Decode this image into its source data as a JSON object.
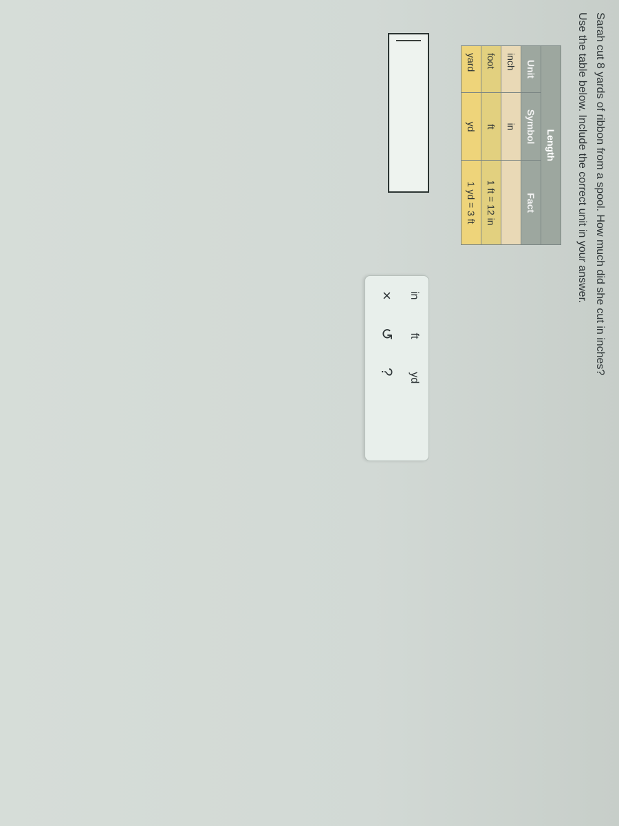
{
  "problem": {
    "line1": "Sarah cut 8 yards of ribbon from a spool. How much did she cut in inches?",
    "line2": "Use the table below. Include the correct unit in your answer."
  },
  "table": {
    "title": "Length",
    "headers": {
      "unit": "Unit",
      "symbol": "Symbol",
      "fact": "Fact"
    },
    "rows": [
      {
        "unit": "inch",
        "symbol": "in",
        "fact": ""
      },
      {
        "unit": "foot",
        "symbol": "ft",
        "fact": "1 ft = 12 in"
      },
      {
        "unit": "yard",
        "symbol": "yd",
        "fact": "1 yd = 3 ft"
      }
    ],
    "title_bg": "#9da79f",
    "header_bg": "#9da79f",
    "row_colors": [
      "#e9d9b6",
      "#e2d07f",
      "#eed47a"
    ],
    "border_color": "#7b8684",
    "text_color": "#2d3436"
  },
  "answer_input": {
    "value": ""
  },
  "tool_panel": {
    "units": {
      "in": "in",
      "ft": "ft",
      "yd": "yd"
    },
    "controls": {
      "clear": "×",
      "undo": "↺",
      "help": "?"
    },
    "bg": "#e8efeb",
    "border": "#b7c0bb"
  },
  "page_bg": "#d4dbda"
}
